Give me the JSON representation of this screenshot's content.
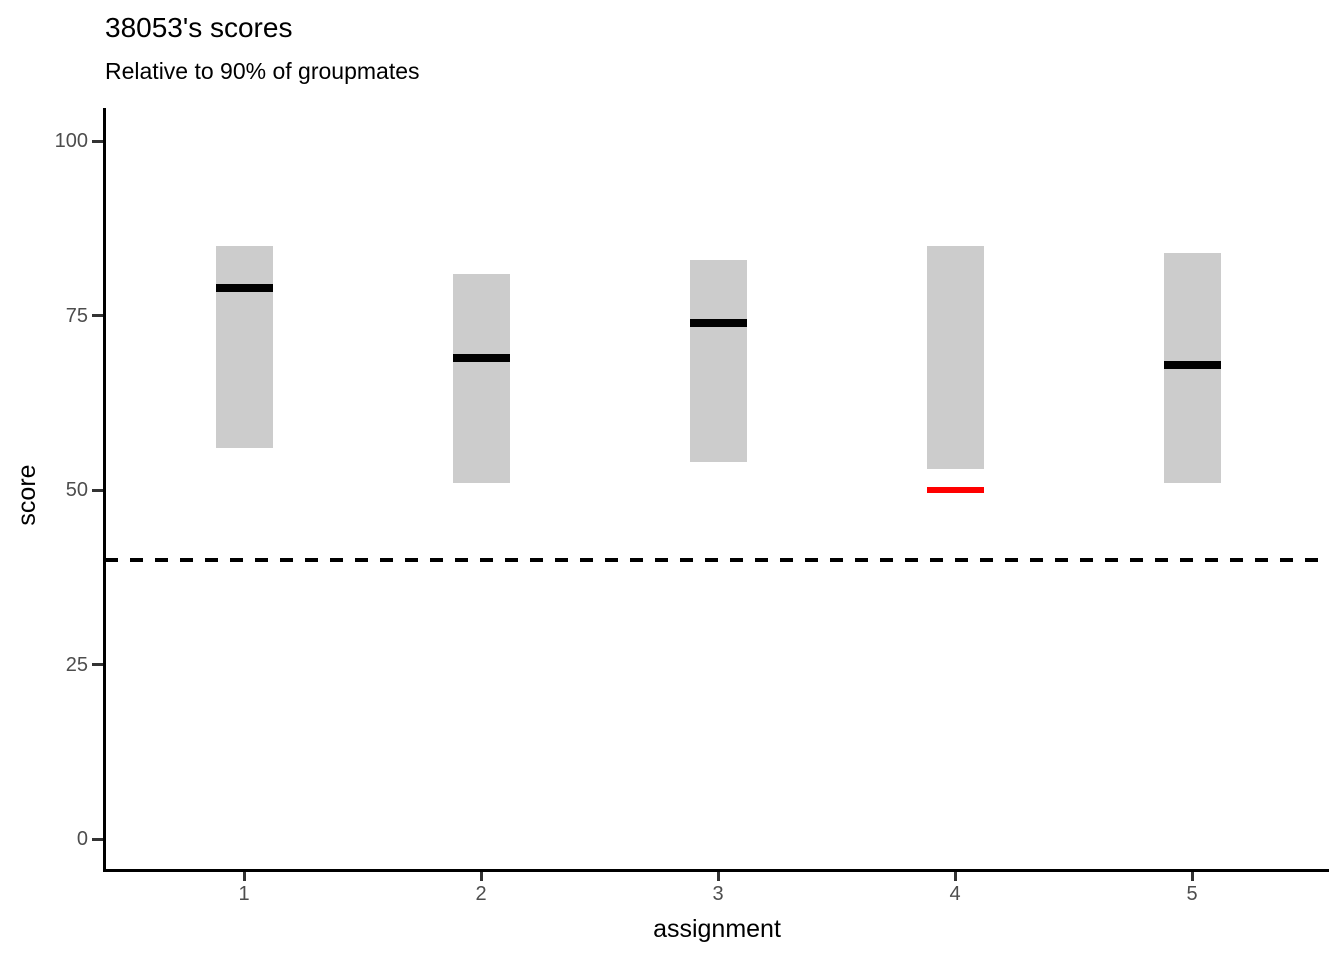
{
  "chart_data": {
    "type": "bar",
    "variant": "crossbar-range",
    "title": "38053's scores",
    "subtitle": "Relative to 90% of groupmates",
    "xlabel": "assignment",
    "ylabel": "score",
    "ylim": [
      0,
      100
    ],
    "yticks": [
      "0",
      "25",
      "50",
      "75",
      "100"
    ],
    "categories": [
      "1",
      "2",
      "3",
      "4",
      "5"
    ],
    "points": [
      {
        "assignment": "1",
        "range_low": 56,
        "range_high": 85,
        "score": 79,
        "score_color": "#000000"
      },
      {
        "assignment": "2",
        "range_low": 51,
        "range_high": 81,
        "score": 69,
        "score_color": "#000000"
      },
      {
        "assignment": "3",
        "range_low": 54,
        "range_high": 83,
        "score": 74,
        "score_color": "#000000"
      },
      {
        "assignment": "4",
        "range_low": 53,
        "range_high": 85,
        "score": 50,
        "score_color": "#FF0000"
      },
      {
        "assignment": "5",
        "range_low": 51,
        "range_high": 84,
        "score": 68,
        "score_color": "#000000"
      }
    ],
    "reference_line": {
      "y": 40,
      "style": "dashed",
      "color": "#000000"
    },
    "colors": {
      "bar_fill": "#CCCCCC",
      "score_line": "#000000",
      "flagged_score_line": "#FF0000",
      "axis_text": "#4D4D4D",
      "axis_line": "#000000"
    },
    "legend": "none",
    "grid": "none"
  }
}
